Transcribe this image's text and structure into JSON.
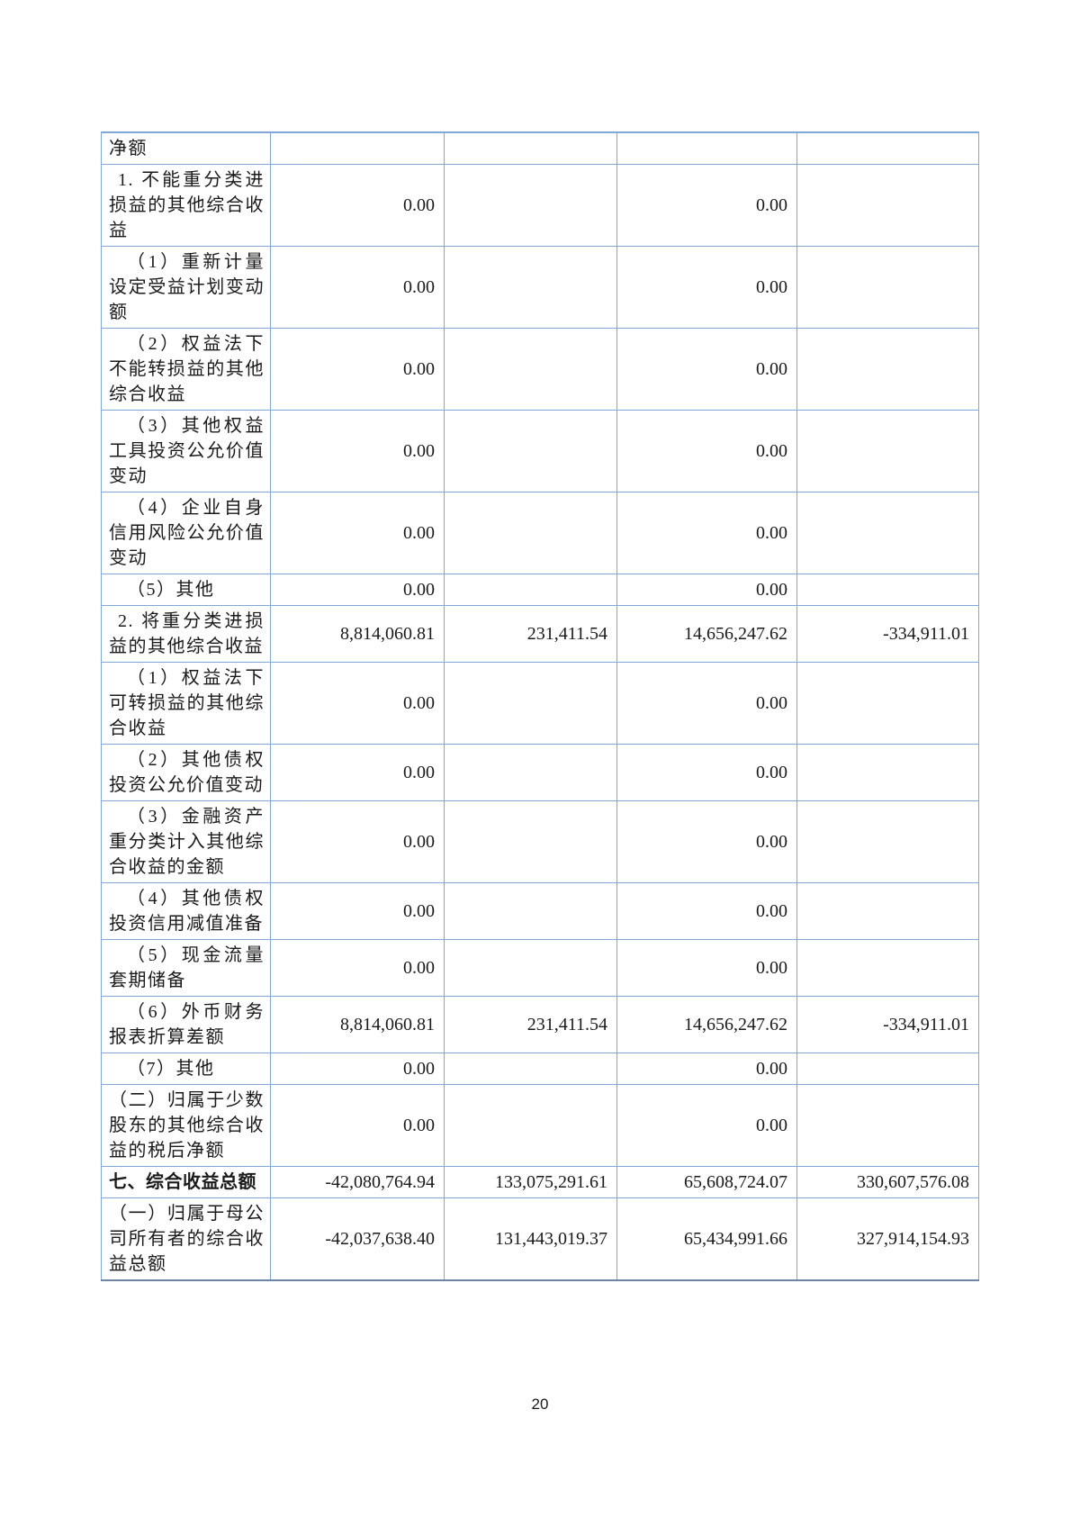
{
  "page": {
    "number": "20"
  },
  "colors": {
    "border_blue": "#7fa8d8",
    "label_background": "#e9e9e9",
    "text": "#1a1a1a",
    "page_background": "#ffffff"
  },
  "table": {
    "description": "comprehensive-income-statement-continuation",
    "rows": [
      {
        "label": "净额",
        "indent": "none",
        "bold": false,
        "values": [
          "",
          "",
          "",
          ""
        ]
      },
      {
        "label": "1. 不能重分类进损益的其他综合收益",
        "indent": "num",
        "bold": false,
        "values": [
          "0.00",
          "",
          "0.00",
          ""
        ]
      },
      {
        "label": "（1）重新计量设定受益计划变动额",
        "indent": "paren",
        "bold": false,
        "values": [
          "0.00",
          "",
          "0.00",
          ""
        ]
      },
      {
        "label": "（2）权益法下不能转损益的其他综合收益",
        "indent": "paren",
        "bold": false,
        "values": [
          "0.00",
          "",
          "0.00",
          ""
        ]
      },
      {
        "label": "（3）其他权益工具投资公允价值变动",
        "indent": "paren",
        "bold": false,
        "values": [
          "0.00",
          "",
          "0.00",
          ""
        ]
      },
      {
        "label": "（4）企业自身信用风险公允价值变动",
        "indent": "paren",
        "bold": false,
        "values": [
          "0.00",
          "",
          "0.00",
          ""
        ]
      },
      {
        "label": "（5）其他",
        "indent": "paren",
        "bold": false,
        "values": [
          "0.00",
          "",
          "0.00",
          ""
        ]
      },
      {
        "label": "2. 将重分类进损益的其他综合收益",
        "indent": "num",
        "bold": false,
        "values": [
          "8,814,060.81",
          "231,411.54",
          "14,656,247.62",
          "-334,911.01"
        ]
      },
      {
        "label": "（1）权益法下可转损益的其他综合收益",
        "indent": "paren",
        "bold": false,
        "values": [
          "0.00",
          "",
          "0.00",
          ""
        ]
      },
      {
        "label": "（2）其他债权投资公允价值变动",
        "indent": "paren",
        "bold": false,
        "values": [
          "0.00",
          "",
          "0.00",
          ""
        ]
      },
      {
        "label": "（3）金融资产重分类计入其他综合收益的金额",
        "indent": "paren",
        "bold": false,
        "values": [
          "0.00",
          "",
          "0.00",
          ""
        ]
      },
      {
        "label": "（4）其他债权投资信用减值准备",
        "indent": "paren",
        "bold": false,
        "values": [
          "0.00",
          "",
          "0.00",
          ""
        ]
      },
      {
        "label": "（5）现金流量套期储备",
        "indent": "paren",
        "bold": false,
        "values": [
          "0.00",
          "",
          "0.00",
          ""
        ]
      },
      {
        "label": "（6）外币财务报表折算差额",
        "indent": "paren",
        "bold": false,
        "values": [
          "8,814,060.81",
          "231,411.54",
          "14,656,247.62",
          "-334,911.01"
        ]
      },
      {
        "label": "（7）其他",
        "indent": "paren",
        "bold": false,
        "values": [
          "0.00",
          "",
          "0.00",
          ""
        ]
      },
      {
        "label": "（二）归属于少数股东的其他综合收益的税后净额",
        "indent": "cn",
        "bold": false,
        "values": [
          "0.00",
          "",
          "0.00",
          ""
        ]
      },
      {
        "label": "七、综合收益总额",
        "indent": "none",
        "bold": true,
        "values": [
          "-42,080,764.94",
          "133,075,291.61",
          "65,608,724.07",
          "330,607,576.08"
        ]
      },
      {
        "label": "（一）归属于母公司所有者的综合收益总额",
        "indent": "cn",
        "bold": false,
        "values": [
          "-42,037,638.40",
          "131,443,019.37",
          "65,434,991.66",
          "327,914,154.93"
        ]
      }
    ]
  }
}
